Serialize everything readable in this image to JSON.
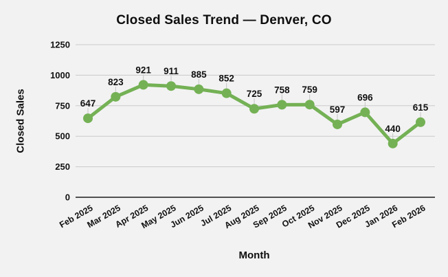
{
  "chart_data": {
    "type": "line",
    "title": "Closed Sales Trend — Denver, CO",
    "xlabel": "Month",
    "ylabel": "Closed Sales",
    "categories": [
      "Feb 2025",
      "Mar 2025",
      "Apr 2025",
      "May 2025",
      "Jun 2025",
      "Jul 2025",
      "Aug 2025",
      "Sep 2025",
      "Oct 2025",
      "Nov 2025",
      "Dec 2025",
      "Jan 2026",
      "Feb 2026"
    ],
    "values": [
      647,
      823,
      921,
      911,
      885,
      852,
      725,
      758,
      759,
      597,
      696,
      440,
      615
    ],
    "ylim": [
      0,
      1250
    ],
    "yticks": [
      0,
      250,
      500,
      750,
      1000,
      1250
    ],
    "grid": true,
    "legend_position": "none",
    "marker": "circle",
    "data_labels": true
  },
  "colors": {
    "background": "#f2f2f2",
    "line": "#74b155",
    "grid": "#c9c9c9",
    "axis": "#1a1a1a",
    "text": "#111111",
    "leader": "#c4c4c4"
  }
}
